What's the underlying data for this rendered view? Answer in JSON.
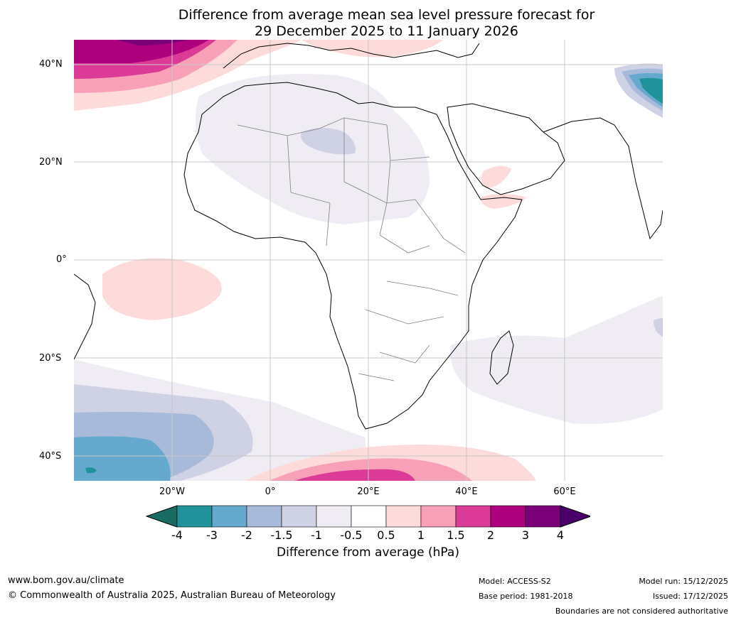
{
  "title": {
    "line1": "Difference from average mean sea level pressure forecast for",
    "line2": "29 December 2025 to 11 January 2026"
  },
  "map": {
    "lat_labels": [
      "40°N",
      "20°N",
      "0°",
      "20°S",
      "40°S"
    ],
    "lon_labels": [
      "20°W",
      "0°",
      "20°E",
      "40°E",
      "60°E"
    ],
    "lon_range": [
      -40,
      80
    ],
    "lat_range": [
      -45,
      45
    ]
  },
  "colorbar": {
    "ticks": [
      "-4",
      "-3",
      "-2",
      "-1.5",
      "-1",
      "-0.5",
      "0.5",
      "1",
      "1.5",
      "2",
      "3",
      "4"
    ],
    "colors": [
      "#1a6b63",
      "#1f9399",
      "#66a9cf",
      "#a7bad9",
      "#cfd1e5",
      "#efecf3",
      "#ffffff",
      "#fddbdb",
      "#f8a0b8",
      "#db3a97",
      "#ae017e",
      "#7a0177",
      "#49006a"
    ],
    "label": "Difference from average (hPa)"
  },
  "footer": {
    "website": "www.bom.gov.au/climate",
    "copyright": "© Commonwealth of Australia 2025, Australian Bureau of Meteorology",
    "model": "Model: ACCESS-S2",
    "base_period": "Base period: 1981-2018",
    "model_run": "Model run: 15/12/2025",
    "issued": "Issued: 17/12/2025",
    "disclaimer": "Boundaries are not considered authoritative"
  }
}
